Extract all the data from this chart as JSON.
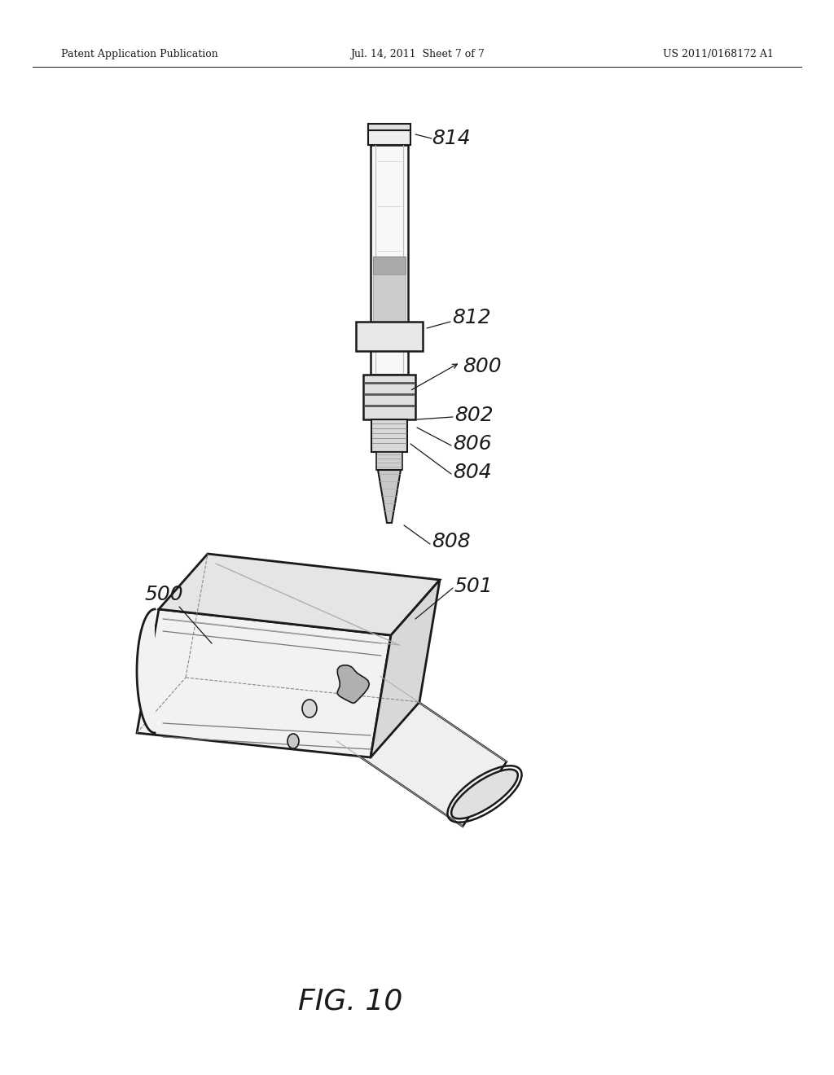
{
  "bg_color": "#ffffff",
  "header_left": "Patent Application Publication",
  "header_mid": "Jul. 14, 2011  Sheet 7 of 7",
  "header_right": "US 2011/0168172 A1",
  "fig_label": "FIG. 10",
  "line_color": "#1a1a1a",
  "text_color": "#1a1a1a",
  "lw_main": 1.6,
  "lw_thin": 0.8
}
